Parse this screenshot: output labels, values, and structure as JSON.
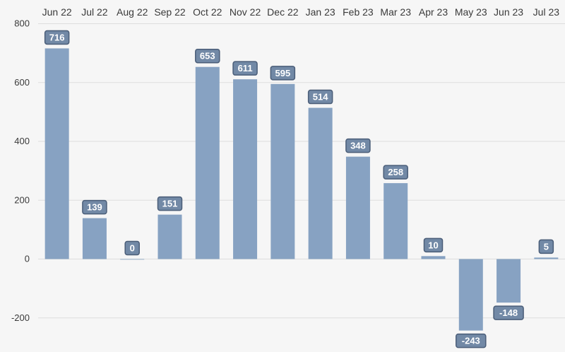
{
  "chart_data": {
    "type": "bar",
    "categories": [
      "Jun 22",
      "Jul 22",
      "Aug 22",
      "Sep 22",
      "Oct 22",
      "Nov 22",
      "Dec 22",
      "Jan 23",
      "Feb 23",
      "Mar 23",
      "Apr 23",
      "May 23",
      "Jun 23",
      "Jul 23"
    ],
    "values": [
      716,
      139,
      0,
      151,
      653,
      611,
      595,
      514,
      348,
      258,
      10,
      -243,
      -148,
      5
    ],
    "ylim": [
      -270,
      800
    ],
    "yticks": [
      800,
      600,
      400,
      200,
      0,
      -200
    ],
    "xaxis_position": "top",
    "grid": true,
    "data_labels": true,
    "colors": {
      "bar": "#87a2c2",
      "label_bg": "#7289a6",
      "label_border": "#4a5d78",
      "grid": "#dddddd",
      "background": "#f6f6f6"
    }
  }
}
